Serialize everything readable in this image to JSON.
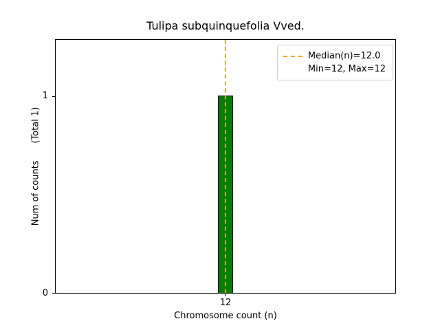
{
  "title": "Tulipa subquinquefolia Vved.",
  "axes": {
    "xlabel": "Chromosome count (n)",
    "ylabel": "Num of counts      (Total 1)",
    "x_tick_12": "12",
    "y_tick_0": "0",
    "y_tick_1": "1"
  },
  "legend": {
    "median_label": "Median(n)=12.0",
    "minmax_label": "Min=12, Max=12"
  },
  "colors": {
    "bar_fill": "#008000",
    "bar_edge": "#000000",
    "median_line": "#ffa500"
  },
  "chart_data": {
    "type": "bar",
    "categories": [
      12
    ],
    "values": [
      1
    ],
    "series_name": "chromosome count histogram",
    "title": "Tulipa subquinquefolia Vved.",
    "xlabel": "Chromosome count (n)",
    "ylabel": "Num of counts (Total 1)",
    "ylim": [
      0,
      1.29
    ],
    "y_ticks": [
      0,
      1
    ],
    "x_ticks": [
      12
    ],
    "grid": false,
    "legend_position": "upper right",
    "legend_entries": [
      "Median(n)=12.0",
      "Min=12, Max=12"
    ],
    "annotations": {
      "median_n": 12.0,
      "min_n": 12,
      "max_n": 12,
      "total_counts": 1,
      "median_line_x": 12,
      "median_line_style": "dashed",
      "median_line_color": "#ffa500"
    }
  }
}
